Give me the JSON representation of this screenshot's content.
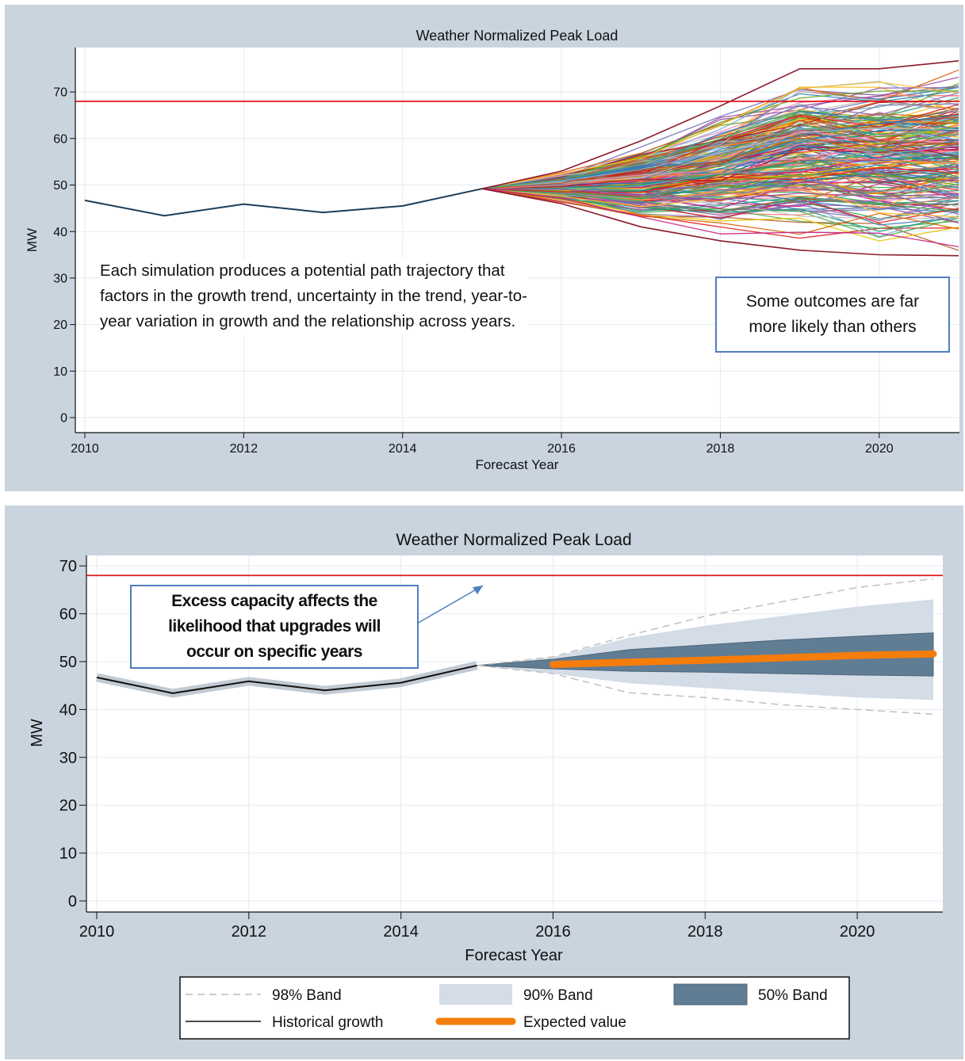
{
  "chart_data": [
    {
      "type": "line",
      "title": "Weather Normalized Peak Load",
      "xlabel": "Forecast Year",
      "ylabel": "MW",
      "xlim": [
        2010,
        2021
      ],
      "ylim": [
        0,
        78
      ],
      "x_ticks": [
        "2010",
        "2012",
        "2014",
        "2016",
        "2018",
        "2020"
      ],
      "y_ticks": [
        "0",
        "10",
        "20",
        "30",
        "40",
        "50",
        "60",
        "70"
      ],
      "reference_line": {
        "y": 68,
        "color": "#e0191b"
      },
      "series": [
        {
          "x": [
            2010,
            2011,
            2012,
            2013,
            2014,
            2015
          ],
          "values": [
            46.7,
            43.4,
            45.9,
            44.1,
            45.5,
            49.2
          ]
        }
      ],
      "simulation_envelope": {
        "x": [
          2015,
          2016,
          2017,
          2018,
          2019,
          2020,
          2021
        ],
        "min": [
          49.2,
          46.0,
          41.0,
          38.0,
          36.0,
          35.0,
          34.8
        ],
        "max": [
          49.2,
          53.0,
          59.5,
          67.0,
          75.0,
          75.0,
          76.7
        ]
      },
      "annotations": [
        "Each simulation produces a potential path trajectory that factors in the growth trend, uncertainty in the trend, year-to-year variation in growth and the relationship across years.",
        "Some outcomes are far more likely than others"
      ],
      "grid": true
    },
    {
      "type": "area",
      "title": "Weather Normalized Peak Load",
      "xlabel": "Forecast Year",
      "ylabel": "MW",
      "xlim": [
        2010,
        2021
      ],
      "ylim": [
        -2,
        72
      ],
      "x_ticks": [
        "2010",
        "2012",
        "2014",
        "2016",
        "2018",
        "2020"
      ],
      "y_ticks": [
        "0",
        "10",
        "20",
        "30",
        "40",
        "50",
        "60",
        "70"
      ],
      "reference_line": {
        "y": 68,
        "color": "#e0191b"
      },
      "x": [
        2010,
        2011,
        2012,
        2013,
        2014,
        2015,
        2016,
        2017,
        2018,
        2019,
        2020,
        2021
      ],
      "series": [
        {
          "name": "98% Band",
          "lower": [
            null,
            null,
            null,
            null,
            null,
            49.2,
            47.5,
            43.5,
            42.5,
            41.0,
            40.0,
            39.0
          ],
          "upper": [
            null,
            null,
            null,
            null,
            null,
            49.2,
            51.0,
            55.5,
            59.5,
            62.5,
            65.5,
            67.3
          ]
        },
        {
          "name": "90% Band",
          "lower": [
            null,
            null,
            null,
            null,
            null,
            49.2,
            47.5,
            45.5,
            44.5,
            43.5,
            42.5,
            42.0
          ],
          "upper": [
            null,
            null,
            null,
            null,
            null,
            49.2,
            51.0,
            55.0,
            57.5,
            59.5,
            61.5,
            63.0
          ]
        },
        {
          "name": "50% Band",
          "lower": [
            null,
            null,
            null,
            null,
            null,
            49.2,
            48.5,
            48.0,
            47.8,
            47.5,
            47.2,
            47.0
          ],
          "upper": [
            null,
            null,
            null,
            null,
            null,
            49.2,
            50.5,
            52.5,
            53.5,
            54.5,
            55.3,
            56.0
          ]
        },
        {
          "name": "Historical growth",
          "values": [
            46.7,
            43.4,
            45.9,
            44.0,
            45.6,
            49.2,
            null,
            null,
            null,
            null,
            null,
            null
          ]
        },
        {
          "name": "Expected value",
          "values": [
            null,
            null,
            null,
            null,
            null,
            null,
            49.4,
            49.9,
            50.3,
            50.8,
            51.3,
            51.6
          ]
        }
      ],
      "annotations": [
        "Excess capacity affects the likelihood that upgrades will occur on specific years"
      ],
      "legend": {
        "position": "bottom",
        "entries": [
          "98% Band",
          "90% Band",
          "50% Band",
          "Historical growth",
          "Expected value"
        ]
      },
      "grid": true
    }
  ],
  "colors": {
    "panel_bg": "#c9d4df",
    "reference_line": "#e0191b",
    "historical": "#1c3d5a",
    "band98": "#c0c0c0",
    "band90": "#d3dce7",
    "band50": "#607d94",
    "expected": "#f57d0c",
    "annotation_border": "#4f7ec1"
  }
}
